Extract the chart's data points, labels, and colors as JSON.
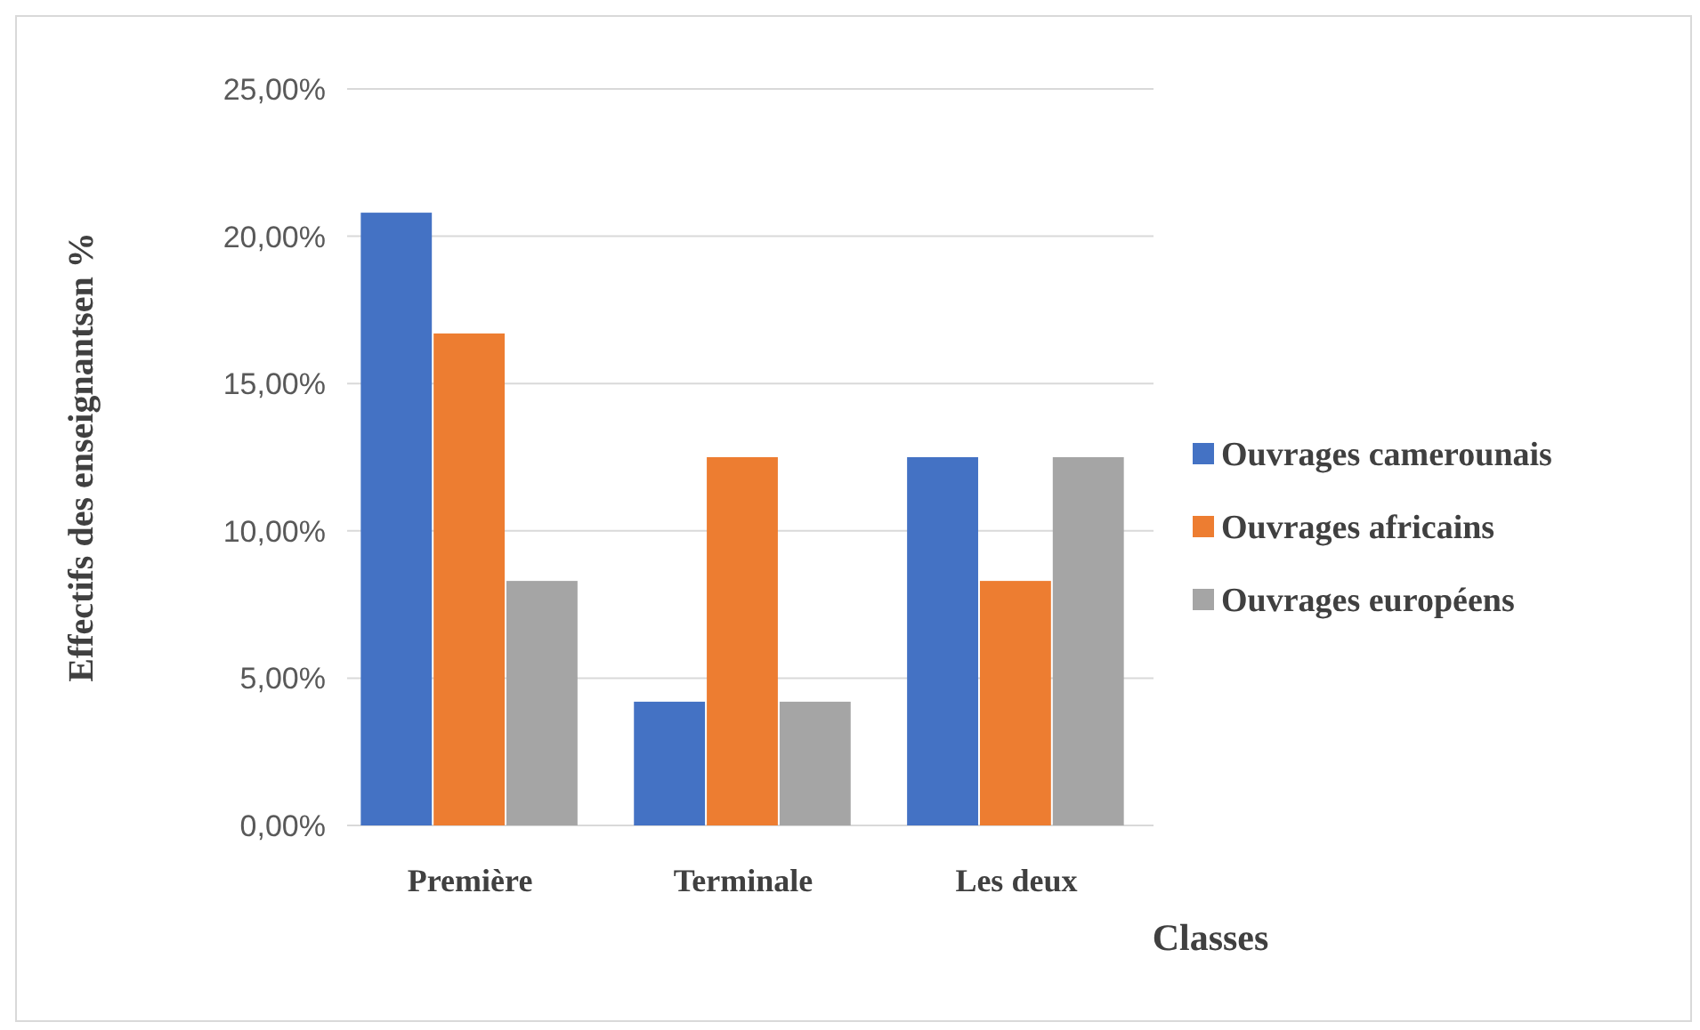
{
  "chart_data": {
    "type": "bar",
    "xlabel": "Classes",
    "ylabel": "Effectifs des enseignantsen %",
    "categories": [
      "Première",
      "Terminale",
      "Les deux"
    ],
    "series": [
      {
        "name": "Ouvrages camerounais",
        "color": "#4472c4",
        "values": [
          20.8,
          4.2,
          12.5
        ]
      },
      {
        "name": "Ouvrages africains",
        "color": "#ed7d31",
        "values": [
          16.7,
          12.5,
          8.3
        ]
      },
      {
        "name": "Ouvrages européens",
        "color": "#a5a5a5",
        "values": [
          8.3,
          4.2,
          12.5
        ]
      }
    ],
    "ylim": [
      0,
      25
    ],
    "yticks": [
      {
        "value": 0,
        "label": "0,00%"
      },
      {
        "value": 5,
        "label": "5,00%"
      },
      {
        "value": 10,
        "label": "10,00%"
      },
      {
        "value": 15,
        "label": "15,00%"
      },
      {
        "value": 20,
        "label": "20,00%"
      },
      {
        "value": 25,
        "label": "25,00%"
      }
    ],
    "grid": "y",
    "legend": "right"
  }
}
